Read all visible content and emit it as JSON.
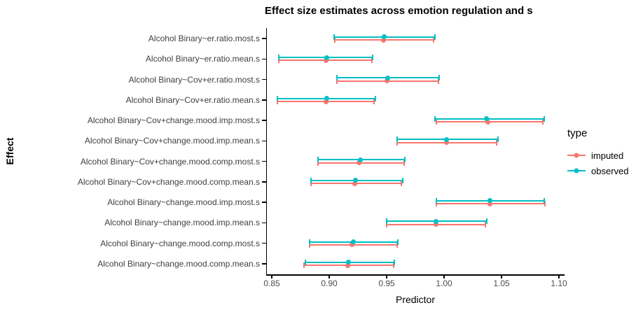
{
  "chart_data": {
    "type": "errorbar",
    "title": "Effect size estimates across emotion regulation and s",
    "xlabel": "Predictor",
    "ylabel": "Effect",
    "x_ticks": [
      "0.85",
      "0.90",
      "0.95",
      "1.00",
      "1.05",
      "1.10"
    ],
    "xlim": [
      0.846,
      1.104
    ],
    "grid": false,
    "legend_position": "right",
    "legend_title": "type",
    "series": [
      {
        "name": "imputed",
        "color": "#F8766D"
      },
      {
        "name": "observed",
        "color": "#00BFC4"
      }
    ],
    "rows": [
      {
        "label": "Alcohol Binary~er.ratio.most.s",
        "imputed": {
          "low": 0.905,
          "est": 0.947,
          "high": 0.991
        },
        "observed": {
          "low": 0.904,
          "est": 0.948,
          "high": 0.992
        }
      },
      {
        "label": "Alcohol Binary~er.ratio.mean.s",
        "imputed": {
          "low": 0.856,
          "est": 0.897,
          "high": 0.937
        },
        "observed": {
          "low": 0.856,
          "est": 0.898,
          "high": 0.938
        }
      },
      {
        "label": "Alcohol Binary~Cov+er.ratio.most.s",
        "imputed": {
          "low": 0.907,
          "est": 0.95,
          "high": 0.995
        },
        "observed": {
          "low": 0.907,
          "est": 0.951,
          "high": 0.996
        }
      },
      {
        "label": "Alcohol Binary~Cov+er.ratio.mean.s",
        "imputed": {
          "low": 0.855,
          "est": 0.897,
          "high": 0.939
        },
        "observed": {
          "low": 0.855,
          "est": 0.898,
          "high": 0.94
        }
      },
      {
        "label": "Alcohol Binary~Cov+change.mood.imp.most.s",
        "imputed": {
          "low": 0.993,
          "est": 1.038,
          "high": 1.086
        },
        "observed": {
          "low": 0.992,
          "est": 1.037,
          "high": 1.087
        }
      },
      {
        "label": "Alcohol Binary~Cov+change.mood.imp.mean.s",
        "imputed": {
          "low": 0.959,
          "est": 1.002,
          "high": 1.046
        },
        "observed": {
          "low": 0.959,
          "est": 1.002,
          "high": 1.047
        }
      },
      {
        "label": "Alcohol Binary~Cov+change.mood.comp.most.s",
        "imputed": {
          "low": 0.89,
          "est": 0.926,
          "high": 0.965
        },
        "observed": {
          "low": 0.89,
          "est": 0.927,
          "high": 0.966
        }
      },
      {
        "label": "Alcohol Binary~Cov+change.mood.comp.mean.s",
        "imputed": {
          "low": 0.884,
          "est": 0.922,
          "high": 0.963
        },
        "observed": {
          "low": 0.884,
          "est": 0.923,
          "high": 0.964
        }
      },
      {
        "label": "Alcohol Binary~change.mood.imp.most.s",
        "imputed": {
          "low": 0.993,
          "est": 1.04,
          "high": 1.088
        },
        "observed": {
          "low": 0.993,
          "est": 1.04,
          "high": 1.087
        }
      },
      {
        "label": "Alcohol Binary~change.mood.imp.mean.s",
        "imputed": {
          "low": 0.95,
          "est": 0.993,
          "high": 1.036
        },
        "observed": {
          "low": 0.95,
          "est": 0.993,
          "high": 1.037
        }
      },
      {
        "label": "Alcohol Binary~change.mood.comp.most.s",
        "imputed": {
          "low": 0.883,
          "est": 0.92,
          "high": 0.959
        },
        "observed": {
          "low": 0.883,
          "est": 0.921,
          "high": 0.96
        }
      },
      {
        "label": "Alcohol Binary~change.mood.comp.mean.s",
        "imputed": {
          "low": 0.878,
          "est": 0.916,
          "high": 0.956
        },
        "observed": {
          "low": 0.879,
          "est": 0.917,
          "high": 0.957
        }
      }
    ]
  }
}
